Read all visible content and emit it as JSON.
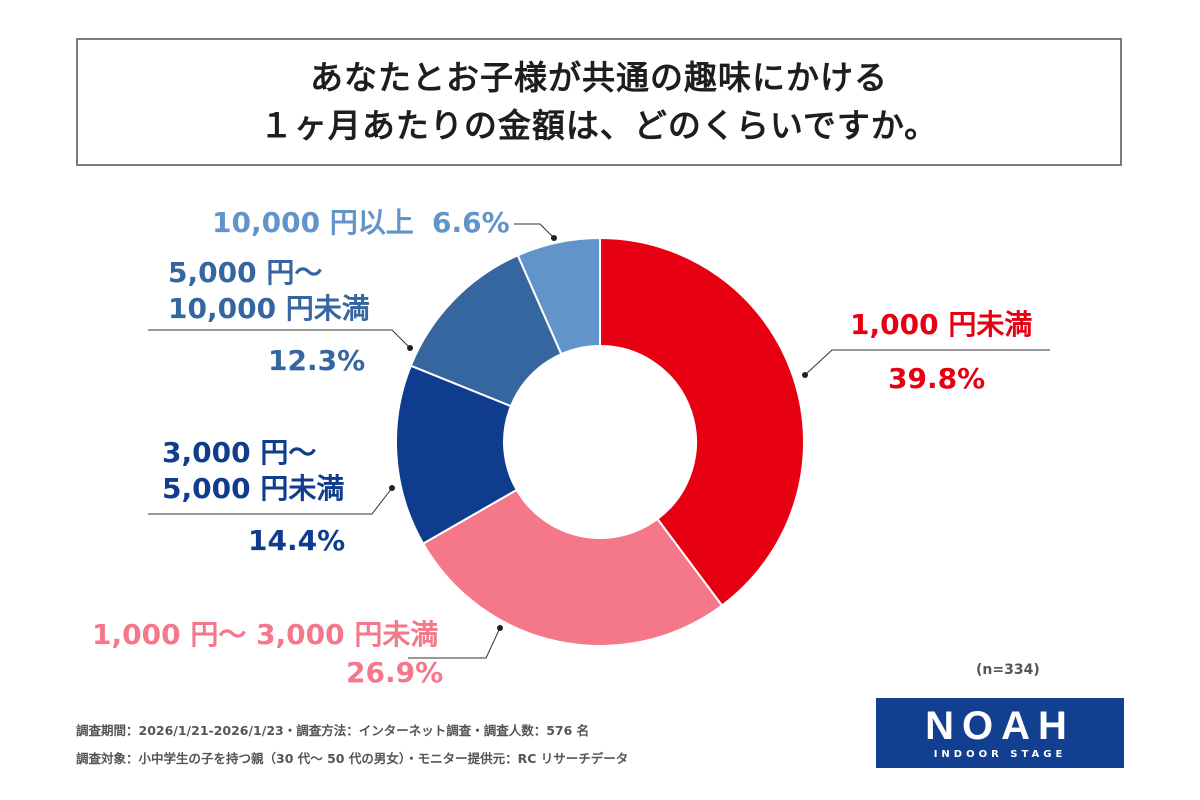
{
  "title": {
    "line1": "あなたとお子様が共通の趣味にかける",
    "line2": "１ヶ月あたりの金額は、どのくらいですか。"
  },
  "chart_data": {
    "type": "pie",
    "style": "donut",
    "categories": [
      "1,000 円未満",
      "1,000 円〜 3,000 円未満",
      "3,000 円〜5,000 円未満",
      "5,000 円〜10,000 円未満",
      "10,000 円以上"
    ],
    "values": [
      39.8,
      26.9,
      14.4,
      12.3,
      6.6
    ],
    "value_labels": [
      "39.8%",
      "26.9%",
      "14.4%",
      "12.3%",
      "6.6%"
    ],
    "colors": [
      "#e60012",
      "#f5778a",
      "#0f3c8c",
      "#3566a0",
      "#6194c8"
    ],
    "start": "12 o'clock",
    "direction": "clockwise"
  },
  "labels": {
    "s0": {
      "line1": "1,000 円未満",
      "pct": "39.8%"
    },
    "s1": {
      "line1": "1,000 円〜 3,000 円未満",
      "pct": "26.9%"
    },
    "s2": {
      "line1": "3,000 円〜",
      "line2": "5,000 円未満",
      "pct": "14.4%"
    },
    "s3": {
      "line1": "5,000 円〜",
      "line2": "10,000 円未満",
      "pct": "12.3%"
    },
    "s4": {
      "line1": "10,000 円以上",
      "pct": "6.6%"
    }
  },
  "sample_note": "(n=334)",
  "footer": {
    "line1": "調査期間：2026/1/21-2026/1/23・調査方法：インターネット調査・調査人数：576 名",
    "line2": "調査対象：小中学生の子を持つ親（30 代〜 50 代の男女）・モニター提供元：RC リサーチデータ"
  },
  "logo": {
    "main": "NOAH",
    "sub": "INDOOR STAGE"
  }
}
